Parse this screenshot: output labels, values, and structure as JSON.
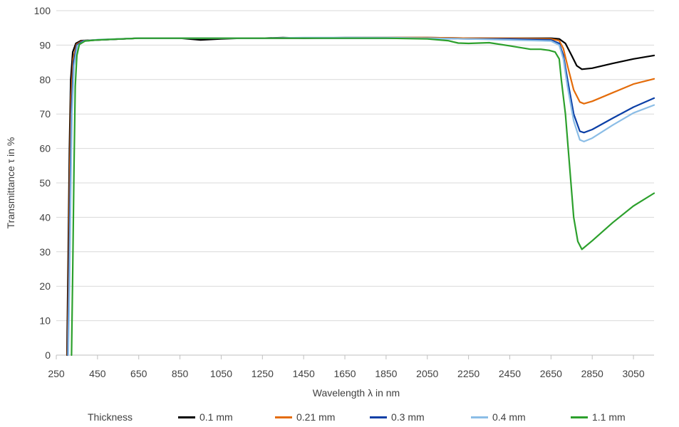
{
  "chart_data": {
    "type": "line",
    "title": "",
    "xlabel": "Wavelength λ in nm",
    "ylabel": "Transmittance τ in %",
    "xlim": [
      250,
      3150
    ],
    "ylim": [
      0,
      100
    ],
    "x_ticks": [
      250,
      450,
      650,
      850,
      1050,
      1250,
      1450,
      1650,
      1850,
      2050,
      2250,
      2450,
      2650,
      2850,
      3050
    ],
    "y_ticks": [
      0,
      10,
      20,
      30,
      40,
      50,
      60,
      70,
      80,
      90,
      100
    ],
    "grid": true,
    "legend_title": "Thickness",
    "legend_position": "bottom",
    "series": [
      {
        "name": "0.1 mm",
        "color": "#000000",
        "points": [
          [
            302,
            0
          ],
          [
            308,
            30
          ],
          [
            314,
            60
          ],
          [
            320,
            80
          ],
          [
            330,
            88
          ],
          [
            345,
            90.5
          ],
          [
            370,
            91.3
          ],
          [
            450,
            91.5
          ],
          [
            650,
            92
          ],
          [
            850,
            92
          ],
          [
            950,
            91.5
          ],
          [
            1050,
            91.8
          ],
          [
            1150,
            92
          ],
          [
            1250,
            92
          ],
          [
            1350,
            92.2
          ],
          [
            1450,
            92
          ],
          [
            1650,
            92.2
          ],
          [
            1850,
            92.2
          ],
          [
            2050,
            92.2
          ],
          [
            2250,
            92
          ],
          [
            2450,
            92
          ],
          [
            2600,
            92
          ],
          [
            2650,
            92
          ],
          [
            2690,
            91.8
          ],
          [
            2720,
            90.5
          ],
          [
            2750,
            87
          ],
          [
            2775,
            84
          ],
          [
            2800,
            83
          ],
          [
            2850,
            83.3
          ],
          [
            2950,
            84.7
          ],
          [
            3050,
            86
          ],
          [
            3150,
            87
          ]
        ]
      },
      {
        "name": "0.21 mm",
        "color": "#e46c0a",
        "points": [
          [
            304,
            0
          ],
          [
            310,
            25
          ],
          [
            316,
            55
          ],
          [
            322,
            75
          ],
          [
            332,
            86
          ],
          [
            348,
            90.2
          ],
          [
            375,
            91.2
          ],
          [
            450,
            91.5
          ],
          [
            650,
            92
          ],
          [
            850,
            92
          ],
          [
            1050,
            92
          ],
          [
            1250,
            92
          ],
          [
            1450,
            92
          ],
          [
            1650,
            92.1
          ],
          [
            1850,
            92.2
          ],
          [
            2050,
            92.2
          ],
          [
            2250,
            92
          ],
          [
            2450,
            92
          ],
          [
            2650,
            91.8
          ],
          [
            2690,
            91.3
          ],
          [
            2710,
            89
          ],
          [
            2730,
            84
          ],
          [
            2760,
            77
          ],
          [
            2790,
            73.5
          ],
          [
            2810,
            73
          ],
          [
            2850,
            73.7
          ],
          [
            2950,
            76.2
          ],
          [
            3050,
            78.7
          ],
          [
            3150,
            80.2
          ]
        ]
      },
      {
        "name": "0.3 mm",
        "color": "#0b3fa6",
        "points": [
          [
            306,
            0
          ],
          [
            312,
            22
          ],
          [
            318,
            50
          ],
          [
            324,
            72
          ],
          [
            334,
            85
          ],
          [
            350,
            90
          ],
          [
            380,
            91.2
          ],
          [
            450,
            91.5
          ],
          [
            650,
            92
          ],
          [
            850,
            92
          ],
          [
            1050,
            92
          ],
          [
            1250,
            92
          ],
          [
            1450,
            92
          ],
          [
            1650,
            92
          ],
          [
            1850,
            92
          ],
          [
            2050,
            92
          ],
          [
            2250,
            91.8
          ],
          [
            2450,
            91.8
          ],
          [
            2650,
            91.5
          ],
          [
            2690,
            90.5
          ],
          [
            2710,
            87
          ],
          [
            2730,
            80
          ],
          [
            2760,
            70
          ],
          [
            2790,
            65
          ],
          [
            2810,
            64.6
          ],
          [
            2850,
            65.5
          ],
          [
            2950,
            68.8
          ],
          [
            3050,
            72
          ],
          [
            3150,
            74.6
          ]
        ]
      },
      {
        "name": "0.4 mm",
        "color": "#8bbde6",
        "points": [
          [
            308,
            0
          ],
          [
            314,
            20
          ],
          [
            320,
            48
          ],
          [
            326,
            70
          ],
          [
            336,
            84
          ],
          [
            352,
            89.8
          ],
          [
            385,
            91.2
          ],
          [
            450,
            91.6
          ],
          [
            650,
            92
          ],
          [
            850,
            92
          ],
          [
            1050,
            92
          ],
          [
            1250,
            92
          ],
          [
            1450,
            92.2
          ],
          [
            1650,
            92.2
          ],
          [
            1850,
            92.2
          ],
          [
            2050,
            92
          ],
          [
            2250,
            91.8
          ],
          [
            2450,
            91.5
          ],
          [
            2650,
            91.2
          ],
          [
            2690,
            90
          ],
          [
            2710,
            86
          ],
          [
            2730,
            78
          ],
          [
            2760,
            68
          ],
          [
            2790,
            62.5
          ],
          [
            2810,
            62
          ],
          [
            2850,
            63
          ],
          [
            2950,
            66.8
          ],
          [
            3050,
            70.3
          ],
          [
            3150,
            72.6
          ]
        ]
      },
      {
        "name": "1.1 mm",
        "color": "#2ca02c",
        "points": [
          [
            324,
            0
          ],
          [
            330,
            25
          ],
          [
            336,
            55
          ],
          [
            342,
            78
          ],
          [
            350,
            87
          ],
          [
            362,
            90.2
          ],
          [
            390,
            91.2
          ],
          [
            450,
            91.5
          ],
          [
            650,
            92
          ],
          [
            850,
            92
          ],
          [
            1050,
            92
          ],
          [
            1250,
            92
          ],
          [
            1450,
            92
          ],
          [
            1650,
            92
          ],
          [
            1850,
            92
          ],
          [
            2050,
            91.8
          ],
          [
            2150,
            91.3
          ],
          [
            2200,
            90.6
          ],
          [
            2250,
            90.5
          ],
          [
            2350,
            90.7
          ],
          [
            2450,
            89.8
          ],
          [
            2550,
            88.8
          ],
          [
            2600,
            88.8
          ],
          [
            2640,
            88.5
          ],
          [
            2670,
            88
          ],
          [
            2690,
            86
          ],
          [
            2700,
            80
          ],
          [
            2720,
            70
          ],
          [
            2740,
            55
          ],
          [
            2760,
            40
          ],
          [
            2780,
            33
          ],
          [
            2800,
            30.7
          ],
          [
            2850,
            33.2
          ],
          [
            2950,
            38.5
          ],
          [
            3050,
            43.3
          ],
          [
            3150,
            47
          ]
        ]
      }
    ]
  }
}
